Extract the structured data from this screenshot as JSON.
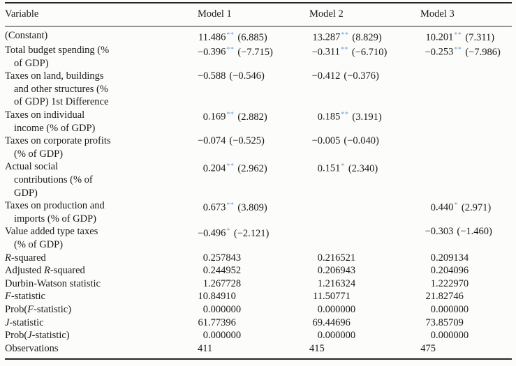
{
  "colors": {
    "star_accent": "#6f9fd6",
    "text": "#1a1a1a",
    "rule": "#262626"
  },
  "table": {
    "headers": [
      "Variable",
      "Model 1",
      "Model 2",
      "Model 3"
    ],
    "coef_rows": [
      {
        "label": [
          "(Constant)"
        ],
        "models": [
          {
            "i": "11",
            "f": ".486",
            "s": "**",
            "t": "(6.885)"
          },
          {
            "i": "13",
            "f": ".287",
            "s": "**",
            "t": "(8.829)"
          },
          {
            "i": "10",
            "f": ".201",
            "s": "**",
            "t": "(7.311)"
          }
        ]
      },
      {
        "label": [
          "Total budget spending (%",
          "of GDP)"
        ],
        "models": [
          {
            "i": "−0",
            "f": ".396",
            "s": "**",
            "t": "(−7.715)"
          },
          {
            "i": "−0",
            "f": ".311",
            "s": "**",
            "t": "(−6.710)"
          },
          {
            "i": "−0",
            "f": ".253",
            "s": "**",
            "t": "(−7.986)"
          }
        ]
      },
      {
        "label": [
          "Taxes on land, buildings",
          "and other structures (%",
          "of GDP) 1st Difference"
        ],
        "models": [
          {
            "i": "−0",
            "f": ".588",
            "s": "",
            "t": "(−0.546)"
          },
          {
            "i": "−0",
            "f": ".412",
            "s": "",
            "t": "(−0.376)"
          },
          null
        ]
      },
      {
        "label": [
          "Taxes on individual",
          "income (% of GDP)"
        ],
        "models": [
          {
            "i": "0",
            "f": ".169",
            "s": "**",
            "t": "(2.882)"
          },
          {
            "i": "0",
            "f": ".185",
            "s": "**",
            "t": "(3.191)"
          },
          null
        ]
      },
      {
        "label": [
          "Taxes on corporate profits",
          "(% of GDP)"
        ],
        "models": [
          {
            "i": "−0",
            "f": ".074",
            "s": "",
            "t": "(−0.525)"
          },
          {
            "i": "−0",
            "f": ".005",
            "s": "",
            "t": "(−0.040)"
          },
          null
        ]
      },
      {
        "label": [
          "Actual social",
          "contributions (% of",
          "GDP)"
        ],
        "models": [
          {
            "i": "0",
            "f": ".204",
            "s": "**",
            "t": "(2.962)"
          },
          {
            "i": "0",
            "f": ".151",
            "s": "*",
            "t": "(2.340)"
          },
          null
        ]
      },
      {
        "label": [
          "Taxes on production and",
          "imports (% of GDP)"
        ],
        "models": [
          {
            "i": "0",
            "f": ".673",
            "s": "**",
            "t": "(3.809)"
          },
          null,
          {
            "i": "0",
            "f": ".440",
            "s": "*",
            "t": "(2.971)"
          }
        ]
      },
      {
        "label": [
          "Value added type taxes",
          "(% of GDP)"
        ],
        "models": [
          {
            "i": "−0",
            "f": ".496",
            "s": "*",
            "t": "(−2.121)"
          },
          null,
          {
            "i": "−0",
            "f": ".303",
            "s": "",
            "t": "(−1.460)"
          }
        ]
      }
    ],
    "stat_rows": [
      {
        "label": {
          "pre": "",
          "it": "R",
          "post": "-squared"
        },
        "models": [
          {
            "i": "0",
            "f": ".257843"
          },
          {
            "i": "0",
            "f": ".216521"
          },
          {
            "i": "0",
            "f": ".209134"
          }
        ]
      },
      {
        "label": {
          "pre": "Adjusted ",
          "it": "R",
          "post": "-squared"
        },
        "models": [
          {
            "i": "0",
            "f": ".244952"
          },
          {
            "i": "0",
            "f": ".206943"
          },
          {
            "i": "0",
            "f": ".204096"
          }
        ]
      },
      {
        "label": {
          "pre": "Durbin-Watson statistic",
          "it": "",
          "post": ""
        },
        "models": [
          {
            "i": "1",
            "f": ".267728"
          },
          {
            "i": "1",
            "f": ".216324"
          },
          {
            "i": "1",
            "f": ".222970"
          }
        ]
      },
      {
        "label": {
          "pre": "",
          "it": "F",
          "post": "-statistic"
        },
        "models": [
          {
            "i": "10",
            "f": ".84910"
          },
          {
            "i": "11",
            "f": ".50771"
          },
          {
            "i": "21",
            "f": ".82746"
          }
        ]
      },
      {
        "label": {
          "pre": "Prob(",
          "it": "F",
          "post": "-statistic)"
        },
        "models": [
          {
            "i": "0",
            "f": ".000000"
          },
          {
            "i": "0",
            "f": ".000000"
          },
          {
            "i": "0",
            "f": ".000000"
          }
        ]
      },
      {
        "label": {
          "pre": "",
          "it": "J",
          "post": "-statistic"
        },
        "models": [
          {
            "i": "61",
            "f": ".77396"
          },
          {
            "i": "69",
            "f": ".44696"
          },
          {
            "i": "73",
            "f": ".85709"
          }
        ]
      },
      {
        "label": {
          "pre": "Prob(",
          "it": "J",
          "post": "-statistic)"
        },
        "models": [
          {
            "i": "0",
            "f": ".000000"
          },
          {
            "i": "0",
            "f": ".000000"
          },
          {
            "i": "0",
            "f": ".000000"
          }
        ]
      },
      {
        "label": {
          "pre": "Observations",
          "it": "",
          "post": ""
        },
        "models": [
          {
            "i": "411",
            "f": ""
          },
          {
            "i": "415",
            "f": ""
          },
          {
            "i": "475",
            "f": ""
          }
        ]
      }
    ]
  }
}
